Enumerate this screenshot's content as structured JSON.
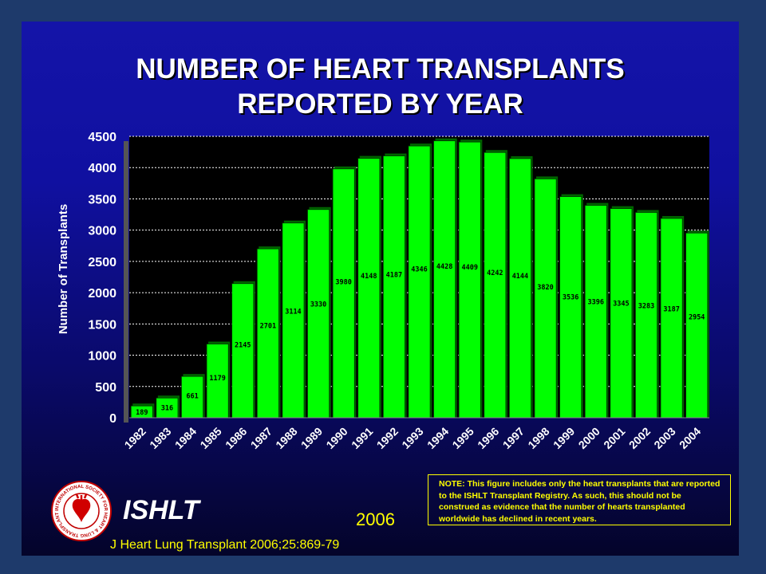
{
  "slide": {
    "title_line1": "NUMBER OF HEART TRANSPLANTS",
    "title_line2": "REPORTED BY YEAR",
    "brand": "ISHLT",
    "year": "2006",
    "citation": "J Heart Lung Transplant 2006;25:869-79",
    "note": "NOTE: This figure includes only the heart transplants that are reported to the ISHLT Transplant Registry.  As such, this should not be construed as evidence that the number of hearts transplanted worldwide has declined in recent years.",
    "logo_text": "INTERNATIONAL SOCIETY FOR HEART & LUNG TRANSPLANTATION",
    "colors": {
      "background": "#1010a0",
      "plot_background": "#000000",
      "bar_fill": "#00ff00",
      "title": "#ffffff",
      "accent": "#ffff00"
    },
    "icons": {
      "logo": "ishlt-seal-icon"
    }
  },
  "chart_data": {
    "type": "bar",
    "title": "NUMBER OF HEART TRANSPLANTS REPORTED BY YEAR",
    "xlabel": "",
    "ylabel": "Number of Transplants",
    "ylim": [
      0,
      4500
    ],
    "yticks": [
      0,
      500,
      1000,
      1500,
      2000,
      2500,
      3000,
      3500,
      4000,
      4500
    ],
    "grid": true,
    "legend": "none",
    "categories": [
      "1982",
      "1983",
      "1984",
      "1985",
      "1986",
      "1987",
      "1988",
      "1989",
      "1990",
      "1991",
      "1992",
      "1993",
      "1994",
      "1995",
      "1996",
      "1997",
      "1998",
      "1999",
      "2000",
      "2001",
      "2002",
      "2003",
      "2004"
    ],
    "values": [
      189,
      316,
      661,
      1179,
      2145,
      2701,
      3114,
      3330,
      3980,
      4148,
      4187,
      4346,
      4428,
      4409,
      4242,
      4144,
      3820,
      3536,
      3396,
      3345,
      3283,
      3187,
      2954
    ]
  }
}
